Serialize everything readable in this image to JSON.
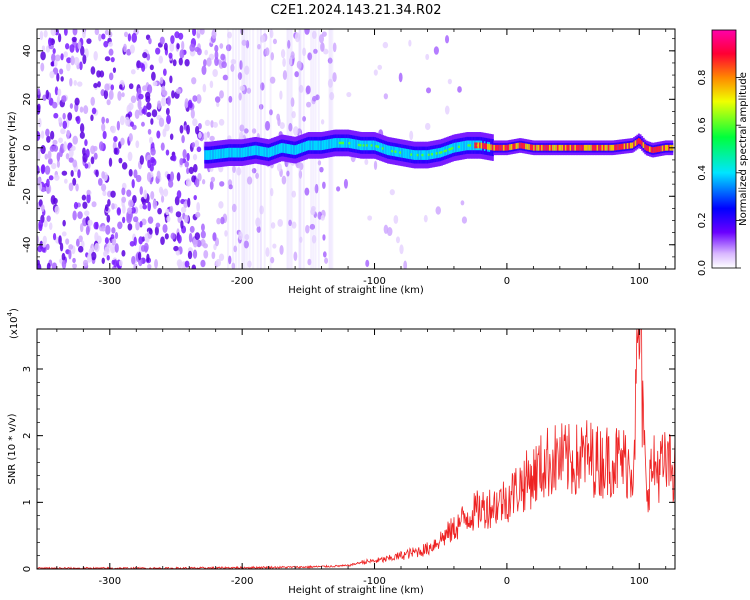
{
  "title": "C2E1.2024.143.21.34.R02",
  "chart_data": [
    {
      "type": "heatmap",
      "xlabel": "Height of straight line (km)",
      "ylabel": "Frequency (Hz)",
      "xlim": [
        -355,
        127
      ],
      "ylim": [
        -50,
        49
      ],
      "x_ticks": [
        -300,
        -200,
        -100,
        0,
        100
      ],
      "x_tick_labels": [
        "-300",
        "-200",
        "-100",
        "0",
        "100"
      ],
      "y_ticks": [
        -40,
        -20,
        0,
        20,
        40
      ],
      "y_tick_labels": [
        "-40",
        "-20",
        "0",
        "20",
        "40"
      ],
      "ridge": {
        "description_x_km": [
          -225,
          -210,
          -200,
          -190,
          -180,
          -170,
          -160,
          -150,
          -140,
          -130,
          -120,
          -110,
          -100,
          -90,
          -80,
          -70,
          -60,
          -50,
          -40,
          -30,
          -20,
          -10,
          0,
          10,
          20,
          40,
          60,
          80,
          95,
          100,
          105,
          110,
          120
        ],
        "center_freq_hz": [
          -3,
          -2,
          -2,
          -1,
          -2,
          0,
          -1,
          1,
          1,
          2,
          2,
          1,
          1,
          -1,
          -2,
          -3,
          -3,
          -2,
          0,
          1,
          1,
          0,
          0,
          1,
          0,
          0,
          0,
          0,
          1,
          3,
          0,
          -1,
          0
        ]
      },
      "colorbar": {
        "label": "Normalized spectral amplitude",
        "ticks": [
          0.0,
          0.2,
          0.4,
          0.6,
          0.8
        ],
        "tick_labels": [
          "0.0",
          "0.2",
          "0.4",
          "0.6",
          "0.8"
        ],
        "range": [
          0,
          1
        ],
        "colors": [
          "#ffffff",
          "#6a00ff",
          "#0000ff",
          "#00e5ff",
          "#00ff3c",
          "#f0ff00",
          "#ff8800",
          "#ff0033",
          "#ff00aa"
        ]
      }
    },
    {
      "type": "line",
      "xlabel": "Height of straight line (km)",
      "ylabel": "SNR (10 * v/v)",
      "multiplier_label": "(x10",
      "multiplier_exp": "4",
      "multiplier_close": ")",
      "xlim": [
        -355,
        127
      ],
      "ylim": [
        0,
        3.6
      ],
      "x_ticks": [
        -300,
        -200,
        -100,
        0,
        100
      ],
      "x_tick_labels": [
        "-300",
        "-200",
        "-100",
        "0",
        "100"
      ],
      "y_ticks": [
        0,
        1,
        2,
        3
      ],
      "y_tick_labels": [
        "0",
        "1",
        "2",
        "3"
      ],
      "series": [
        {
          "color": "#ee2222",
          "x": [
            -355,
            -300,
            -250,
            -200,
            -150,
            -120,
            -110,
            -100,
            -90,
            -80,
            -70,
            -60,
            -50,
            -40,
            -30,
            -20,
            -10,
            0,
            10,
            20,
            30,
            40,
            50,
            60,
            70,
            80,
            90,
            95,
            100,
            105,
            110,
            120,
            127
          ],
          "y": [
            0.01,
            0.01,
            0.01,
            0.02,
            0.03,
            0.05,
            0.1,
            0.12,
            0.15,
            0.2,
            0.25,
            0.3,
            0.45,
            0.6,
            0.8,
            0.9,
            0.95,
            1.05,
            1.25,
            1.4,
            1.6,
            1.65,
            1.6,
            1.7,
            1.6,
            1.65,
            1.6,
            1.5,
            3.6,
            1.2,
            1.5,
            1.55,
            1.5
          ]
        }
      ]
    }
  ]
}
